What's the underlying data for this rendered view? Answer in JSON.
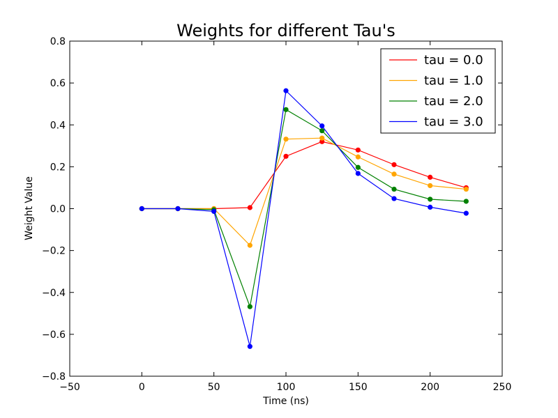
{
  "chart_data": {
    "type": "line",
    "title": "Weights for different Tau's",
    "xlabel": "Time (ns)",
    "ylabel": "Weight Value",
    "xlim": [
      -50,
      250
    ],
    "ylim": [
      -0.8,
      0.8
    ],
    "xticks": [
      -50,
      0,
      50,
      100,
      150,
      200,
      250
    ],
    "yticks": [
      -0.8,
      -0.6,
      -0.4,
      -0.2,
      0.0,
      0.2,
      0.4,
      0.6,
      0.8
    ],
    "xtick_labels": [
      "−50",
      "0",
      "50",
      "100",
      "150",
      "200",
      "250"
    ],
    "ytick_labels": [
      "−0.8",
      "−0.6",
      "−0.4",
      "−0.2",
      "0.0",
      "0.2",
      "0.4",
      "0.6",
      "0.8"
    ],
    "grid": false,
    "legend_position": "top-right",
    "x": [
      0,
      25,
      50,
      75,
      100,
      125,
      150,
      175,
      200,
      225
    ],
    "series": [
      {
        "name": "tau = 0.0",
        "color": "#ff0000",
        "values": [
          0.0,
          0.0,
          0.0,
          0.005,
          0.25,
          0.32,
          0.28,
          0.21,
          0.15,
          0.1
        ]
      },
      {
        "name": "tau = 1.0",
        "color": "#ffa500",
        "values": [
          0.0,
          0.0,
          0.0,
          -0.175,
          0.332,
          0.337,
          0.247,
          0.165,
          0.11,
          0.093
        ]
      },
      {
        "name": "tau = 2.0",
        "color": "#008000",
        "values": [
          0.0,
          0.0,
          -0.005,
          -0.468,
          0.473,
          0.372,
          0.197,
          0.093,
          0.045,
          0.035
        ]
      },
      {
        "name": "tau = 3.0",
        "color": "#0000ff",
        "values": [
          0.0,
          0.0,
          -0.013,
          -0.658,
          0.563,
          0.395,
          0.168,
          0.048,
          0.007,
          -0.022
        ]
      }
    ]
  }
}
